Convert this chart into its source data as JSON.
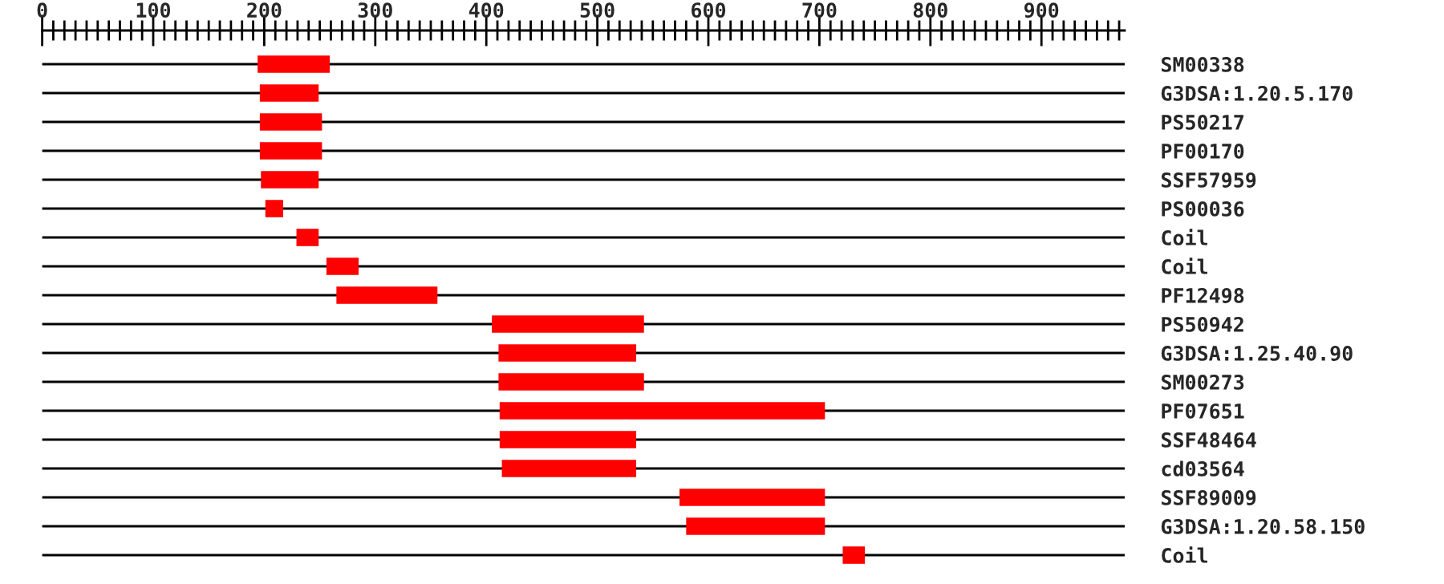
{
  "chart_data": {
    "type": "bar",
    "orientation": "horizontal",
    "categories": [
      "SM00338",
      "G3DSA:1.20.5.170",
      "PS50217",
      "PF00170",
      "SSF57959",
      "PS00036",
      "Coil",
      "Coil",
      "PF12498",
      "PS50942",
      "G3DSA:1.25.40.90",
      "SM00273",
      "PF07651",
      "SSF48464",
      "cd03564",
      "SSF89009",
      "G3DSA:1.20.58.150",
      "Coil"
    ],
    "base": [
      194,
      196,
      196,
      196,
      197,
      201,
      229,
      256,
      265,
      405,
      411,
      411,
      412,
      412,
      414,
      574,
      580,
      721
    ],
    "values": [
      65,
      53,
      56,
      56,
      52,
      16,
      20,
      29,
      91,
      137,
      124,
      131,
      293,
      123,
      121,
      131,
      125,
      20
    ],
    "color": "#ff0000",
    "xlim": [
      0,
      975
    ],
    "xticks": [
      0,
      {
        "value": 10,
        "label": null
      },
      {
        "value": 20,
        "label": null
      },
      {
        "value": 30,
        "label": null
      },
      {
        "value": 40,
        "label": null
      },
      {
        "value": 50,
        "label": null
      },
      {
        "value": 60,
        "label": null
      },
      {
        "value": 70,
        "label": null
      },
      {
        "value": 80,
        "label": null
      },
      {
        "value": 90,
        "label": null
      },
      100,
      {
        "value": 110,
        "label": null
      },
      {
        "value": 120,
        "label": null
      },
      {
        "value": 130,
        "label": null
      },
      {
        "value": 140,
        "label": null
      },
      {
        "value": 150,
        "label": null
      },
      {
        "value": 160,
        "label": null
      },
      {
        "value": 170,
        "label": null
      },
      {
        "value": 180,
        "label": null
      },
      {
        "value": 190,
        "label": null
      },
      200,
      {
        "value": 210,
        "label": null
      },
      {
        "value": 220,
        "label": null
      },
      {
        "value": 230,
        "label": null
      },
      {
        "value": 240,
        "label": null
      },
      {
        "value": 250,
        "label": null
      },
      {
        "value": 260,
        "label": null
      },
      {
        "value": 270,
        "label": null
      },
      {
        "value": 280,
        "label": null
      },
      {
        "value": 290,
        "label": null
      },
      300,
      {
        "value": 310,
        "label": null
      },
      {
        "value": 320,
        "label": null
      },
      {
        "value": 330,
        "label": null
      },
      {
        "value": 340,
        "label": null
      },
      {
        "value": 350,
        "label": null
      },
      {
        "value": 360,
        "label": null
      },
      {
        "value": 370,
        "label": null
      },
      {
        "value": 380,
        "label": null
      },
      {
        "value": 390,
        "label": null
      },
      400,
      {
        "value": 410,
        "label": null
      },
      {
        "value": 420,
        "label": null
      },
      {
        "value": 430,
        "label": null
      },
      {
        "value": 440,
        "label": null
      },
      {
        "value": 450,
        "label": null
      },
      {
        "value": 460,
        "label": null
      },
      {
        "value": 470,
        "label": null
      },
      {
        "value": 480,
        "label": null
      },
      {
        "value": 490,
        "label": null
      },
      500,
      {
        "value": 510,
        "label": null
      },
      {
        "value": 520,
        "label": null
      },
      {
        "value": 530,
        "label": null
      },
      {
        "value": 540,
        "label": null
      },
      {
        "value": 550,
        "label": null
      },
      {
        "value": 560,
        "label": null
      },
      {
        "value": 570,
        "label": null
      },
      {
        "value": 580,
        "label": null
      },
      {
        "value": 590,
        "label": null
      },
      600,
      {
        "value": 610,
        "label": null
      },
      {
        "value": 620,
        "label": null
      },
      {
        "value": 630,
        "label": null
      },
      {
        "value": 640,
        "label": null
      },
      {
        "value": 650,
        "label": null
      },
      {
        "value": 660,
        "label": null
      },
      {
        "value": 670,
        "label": null
      },
      {
        "value": 680,
        "label": null
      },
      {
        "value": 690,
        "label": null
      },
      700,
      {
        "value": 710,
        "label": null
      },
      {
        "value": 720,
        "label": null
      },
      {
        "value": 730,
        "label": null
      },
      {
        "value": 740,
        "label": null
      },
      {
        "value": 750,
        "label": null
      },
      {
        "value": 760,
        "label": null
      },
      {
        "value": 770,
        "label": null
      },
      {
        "value": 780,
        "label": null
      },
      {
        "value": 790,
        "label": null
      },
      800,
      {
        "value": 810,
        "label": null
      },
      {
        "value": 820,
        "label": null
      },
      {
        "value": 830,
        "label": null
      },
      {
        "value": 840,
        "label": null
      },
      {
        "value": 850,
        "label": null
      },
      {
        "value": 860,
        "label": null
      },
      {
        "value": 870,
        "label": null
      },
      {
        "value": 880,
        "label": null
      },
      {
        "value": 890,
        "label": null
      },
      900,
      {
        "value": 910,
        "label": null
      },
      {
        "value": 920,
        "label": null
      },
      {
        "value": 930,
        "label": null
      },
      {
        "value": 940,
        "label": null
      },
      {
        "value": 950,
        "label": null
      },
      {
        "value": 960,
        "label": null
      },
      {
        "value": 970,
        "label": null
      }
    ],
    "grid": "y"
  }
}
